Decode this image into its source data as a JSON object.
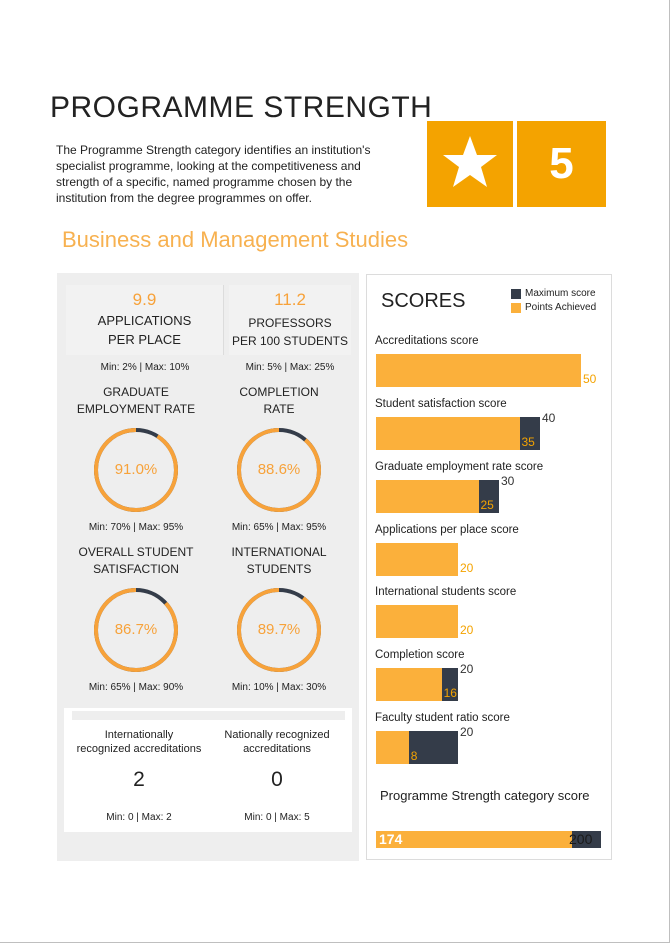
{
  "header": {
    "title": "PROGRAMME STRENGTH",
    "intro": "The Programme Strength category identifies an institution's specialist programme, looking at the competitiveness and strength of a specific, named programme chosen by the institution from the degree programmes on offer.",
    "star_icon": "star-icon",
    "rating": "5",
    "accent_color": "#f4a300"
  },
  "subject": "Business and Management Studies",
  "stats": {
    "applications": {
      "value": "9.9",
      "label_line1": "APPLICATIONS",
      "label_line2": "PER PLACE",
      "minmax": "Min: 2% | Max: 10%"
    },
    "professors": {
      "value": "11.2",
      "label_line1": "PROFESSORS",
      "label_line2": "PER 100 STUDENTS",
      "minmax": "Min: 5% | Max: 25%"
    }
  },
  "metrics": [
    {
      "label_line1": "GRADUATE",
      "label_line2": "EMPLOYMENT RATE",
      "value": "91.0%",
      "fraction": 0.91,
      "minmax": "Min: 70% | Max: 95%"
    },
    {
      "label_line1": "COMPLETION",
      "label_line2": "RATE",
      "value": "88.6%",
      "fraction": 0.886,
      "minmax": "Min: 65% | Max: 95%"
    },
    {
      "label_line1": "OVERALL STUDENT",
      "label_line2": "SATISFACTION",
      "value": "86.7%",
      "fraction": 0.867,
      "minmax": "Min: 65% | Max: 90%"
    },
    {
      "label_line1": "INTERNATIONAL",
      "label_line2": "STUDENTS",
      "value": "89.7%",
      "fraction": 0.897,
      "minmax": "Min: 10% | Max: 30%"
    }
  ],
  "accreditations": [
    {
      "label_line1": "Internationally",
      "label_line2": "recognized accreditations",
      "value": "2",
      "minmax": "Min: 0 | Max: 2"
    },
    {
      "label_line1": "Nationally recognized",
      "label_line2": "accreditations",
      "value": "0",
      "minmax": "Min: 0 | Max: 5"
    }
  ],
  "scores": {
    "title": "SCORES",
    "legend_max": "Maximum score",
    "legend_achieved": "Points Achieved",
    "max_color": "#343c49",
    "achieved_color": "#fbb03b"
  },
  "chart_data": {
    "type": "bar",
    "title": "SCORES",
    "categories": [
      "Accreditations score",
      "Student satisfaction score",
      "Graduate employment rate score",
      "Applications per place score",
      "International students score",
      "Completion score",
      "Faculty student ratio score"
    ],
    "series": [
      {
        "name": "Maximum score",
        "values": [
          50,
          40,
          30,
          20,
          20,
          20,
          20
        ]
      },
      {
        "name": "Points Achieved",
        "values": [
          50,
          35,
          25,
          20,
          20,
          16,
          8
        ]
      }
    ],
    "max_labels": [
      "",
      "40",
      "30",
      "",
      "",
      "20",
      "20"
    ],
    "achieved_labels": [
      "50",
      "35",
      "25",
      "20",
      "20",
      "16",
      "8"
    ],
    "total": {
      "label": "Programme Strength category score",
      "achieved": 174,
      "achieved_label": "174",
      "max": 200,
      "max_label": "200"
    }
  }
}
